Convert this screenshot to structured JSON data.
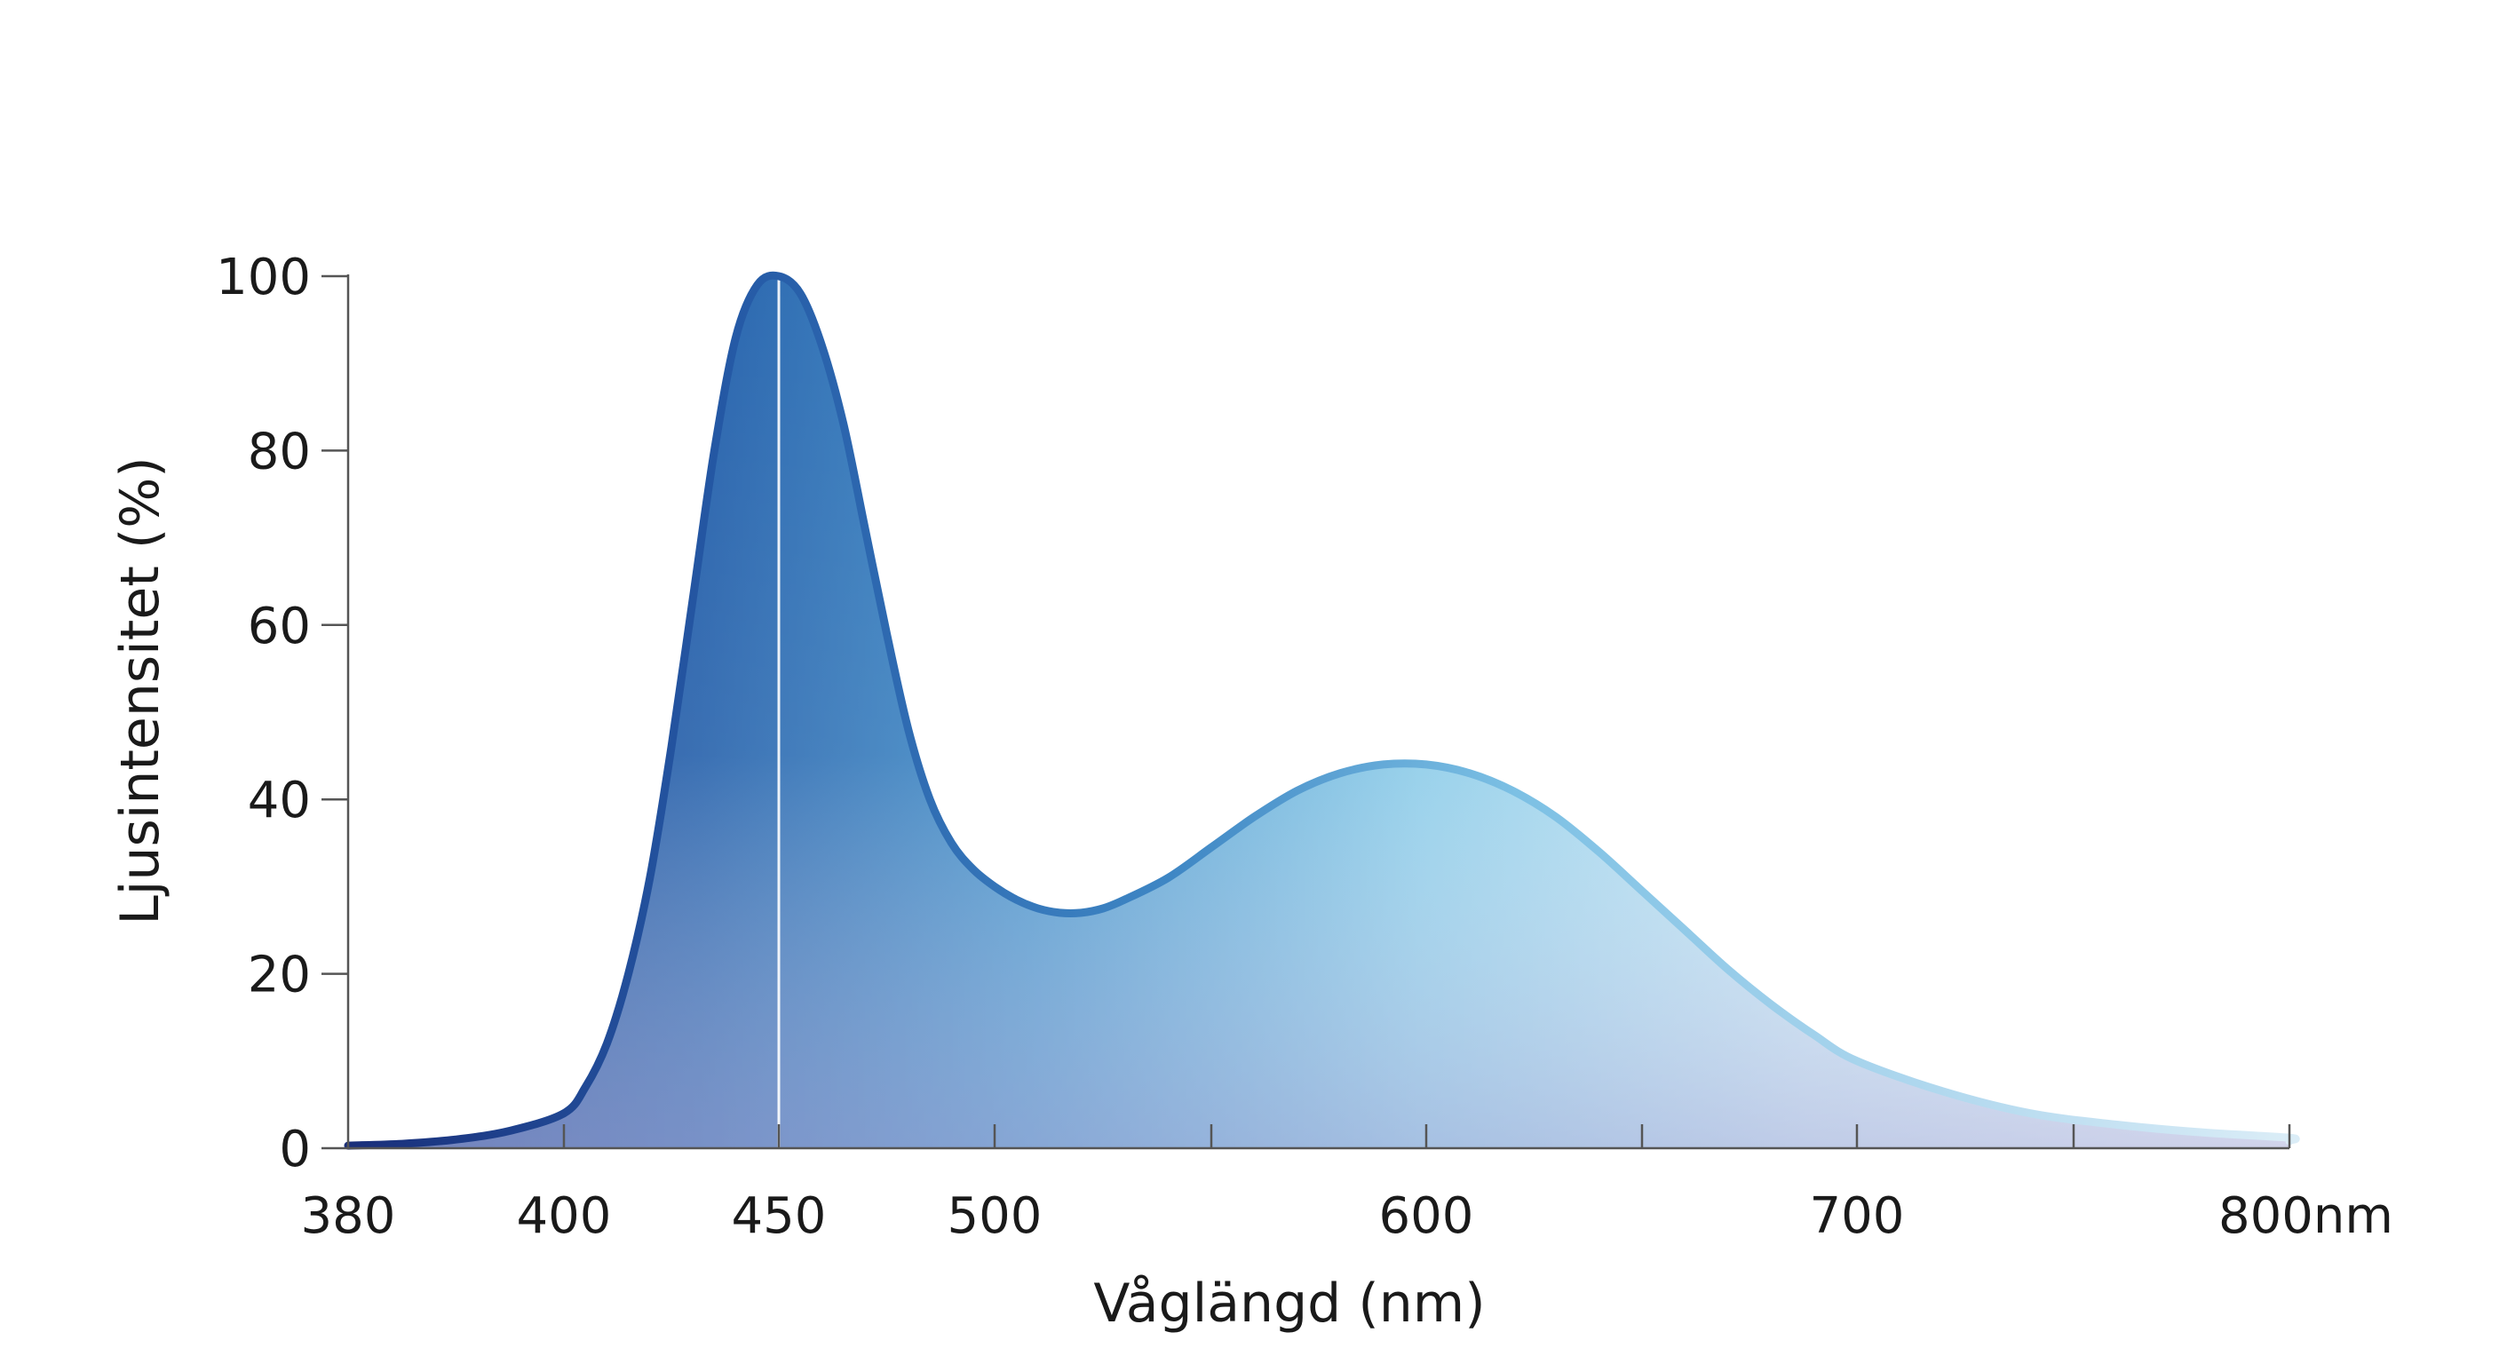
{
  "chart_data": {
    "type": "area",
    "title": "",
    "xlabel": "Våglängd (nm)",
    "ylabel": "Ljusintensitet (%)",
    "xlim": [
      380,
      830
    ],
    "ylim": [
      0,
      100
    ],
    "x_tick_values": [
      380,
      400,
      450,
      500,
      600,
      700,
      800
    ],
    "x_tick_labels": [
      "380",
      "400",
      "450",
      "500",
      "600",
      "700",
      "800nm"
    ],
    "x_minor_ticks": [
      550,
      650,
      750
    ],
    "y_tick_values": [
      0,
      20,
      40,
      60,
      80,
      100
    ],
    "y_tick_labels": [
      "0",
      "20",
      "40",
      "60",
      "80",
      "100"
    ],
    "peak_marker_x": 450,
    "grid": false,
    "legend": "none",
    "colors": {
      "peak_blue": "#1f4e96",
      "mid_blue": "#3a7fbf",
      "light_blue": "#8fcbe8",
      "tail_blue": "#cfe6f4",
      "base_purple": "#8a8ec4",
      "axis": "#555555"
    },
    "series": [
      {
        "x": [
          380,
          385,
          390,
          395,
          400,
          405,
          410,
          415,
          420,
          425,
          430,
          435,
          440,
          445,
          450,
          455,
          460,
          465,
          470,
          475,
          480,
          485,
          490,
          495,
          500,
          505,
          510,
          515,
          520,
          525,
          530,
          540,
          550,
          560,
          570,
          580,
          590,
          600,
          610,
          620,
          630,
          640,
          650,
          660,
          670,
          680,
          690,
          700,
          720,
          740,
          760,
          780,
          800,
          820,
          830
        ],
        "y": [
          0.3,
          0.5,
          1.0,
          2.0,
          4.0,
          7.0,
          12.0,
          20.0,
          31.0,
          46.0,
          63.0,
          80.0,
          93.0,
          99.0,
          100.0,
          98.0,
          92.0,
          83.0,
          71.0,
          59.0,
          48.0,
          40.0,
          35.0,
          32.0,
          30.0,
          28.5,
          27.5,
          27.0,
          27.0,
          27.5,
          28.5,
          31.0,
          34.5,
          38.0,
          41.0,
          43.0,
          44.0,
          44.0,
          43.0,
          41.0,
          38.0,
          34.0,
          29.5,
          25.0,
          20.5,
          16.5,
          13.0,
          10.0,
          6.5,
          4.0,
          2.7,
          1.8,
          1.2,
          0.9,
          0.8
        ]
      }
    ]
  }
}
